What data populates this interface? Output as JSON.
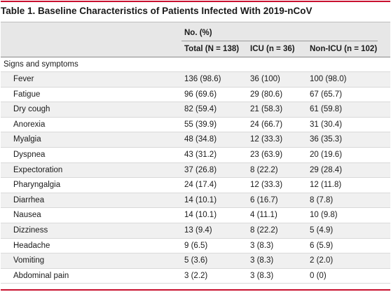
{
  "title": "Table 1. Baseline Characteristics of Patients Infected With 2019-nCoV",
  "header": {
    "group_label": "No. (%)",
    "columns": [
      "Total (N = 138)",
      "ICU (n = 36)",
      "Non-ICU (n = 102)"
    ]
  },
  "section": "Signs and symptoms",
  "rows": [
    [
      "Fever",
      "136 (98.6)",
      "36 (100)",
      "100 (98.0)"
    ],
    [
      "Fatigue",
      "96 (69.6)",
      "29 (80.6)",
      "67 (65.7)"
    ],
    [
      "Dry cough",
      "82 (59.4)",
      "21 (58.3)",
      "61 (59.8)"
    ],
    [
      "Anorexia",
      "55 (39.9)",
      "24 (66.7)",
      "31 (30.4)"
    ],
    [
      "Myalgia",
      "48 (34.8)",
      "12 (33.3)",
      "36 (35.3)"
    ],
    [
      "Dyspnea",
      "43 (31.2)",
      "23 (63.9)",
      "20 (19.6)"
    ],
    [
      "Expectoration",
      "37 (26.8)",
      "8 (22.2)",
      "29 (28.4)"
    ],
    [
      "Pharyngalgia",
      "24 (17.4)",
      "12 (33.3)",
      "12 (11.8)"
    ],
    [
      "Diarrhea",
      "14 (10.1)",
      "6 (16.7)",
      "8 (7.8)"
    ],
    [
      "Nausea",
      "14 (10.1)",
      "4 (11.1)",
      "10 (9.8)"
    ],
    [
      "Dizziness",
      "13 (9.4)",
      "8 (22.2)",
      "5 (4.9)"
    ],
    [
      "Headache",
      "9 (6.5)",
      "3 (8.3)",
      "6 (5.9)"
    ],
    [
      "Vomiting",
      "5 (3.6)",
      "3 (8.3)",
      "2 (2.0)"
    ],
    [
      "Abdominal pain",
      "3 (2.2)",
      "3 (8.3)",
      "0 (0)"
    ]
  ],
  "colors": {
    "accent": "#c8102e",
    "header_bg": "#e7e7e7",
    "stripe_bg": "#f0f0f0"
  }
}
